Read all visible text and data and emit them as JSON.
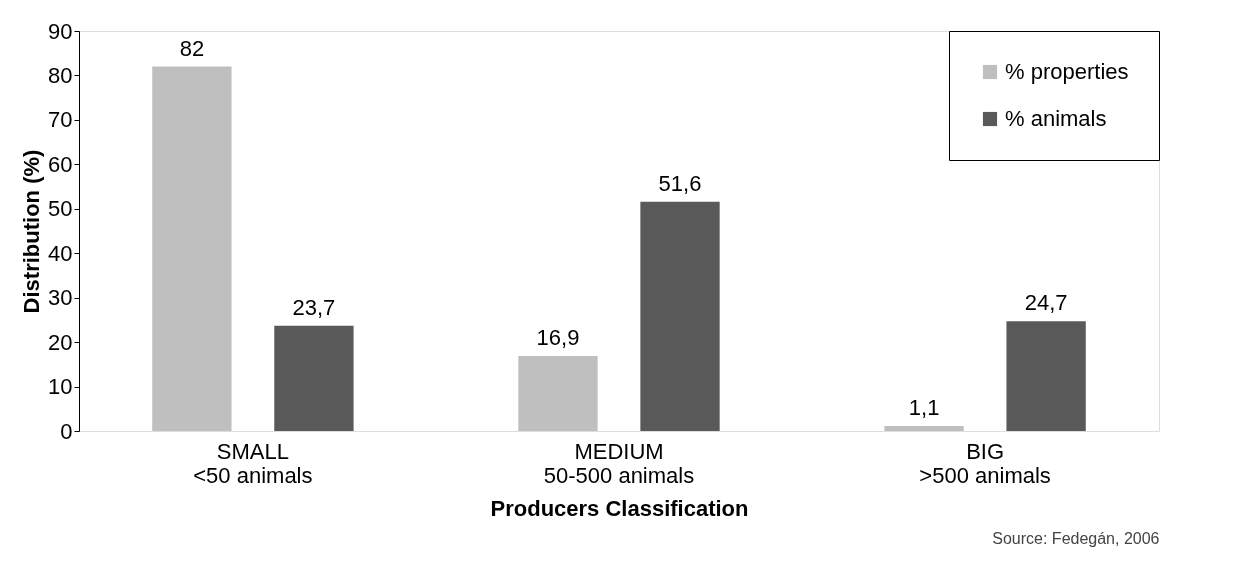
{
  "chart_data": {
    "type": "bar",
    "categories": [
      "SMALL\n<50 animals",
      "MEDIUM\n50-500 animals",
      "BIG\n>500 animals"
    ],
    "series": [
      {
        "name": "% properties",
        "color": "#bfbfbf",
        "values": [
          82,
          16.9,
          1.1
        ],
        "value_labels": [
          "82",
          "16,9",
          "1,1"
        ]
      },
      {
        "name": "% animals",
        "color": "#595959",
        "values": [
          23.7,
          51.6,
          24.7
        ],
        "value_labels": [
          "23,7",
          "51,6",
          "24,7"
        ]
      }
    ],
    "xlabel": "Producers Classification",
    "ylabel": "Distribution (%)",
    "ylim": [
      0,
      90
    ],
    "yticks": [
      0,
      10,
      20,
      30,
      40,
      50,
      60,
      70,
      80,
      90
    ],
    "grid": false,
    "legend": "top right",
    "annotations": [
      "Source: Fedegán, 2006"
    ]
  }
}
